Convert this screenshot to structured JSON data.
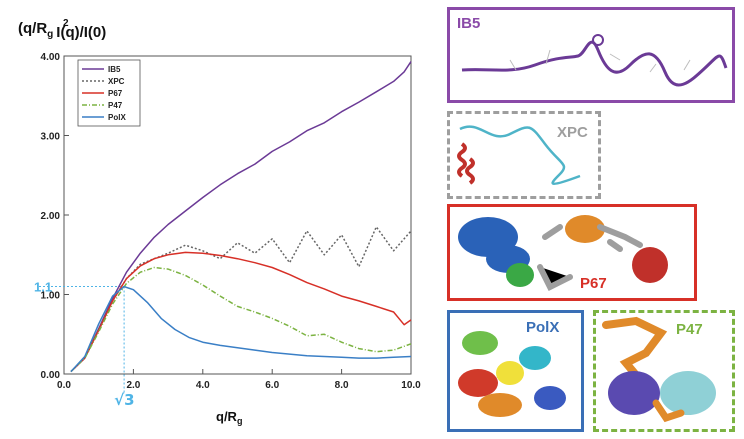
{
  "chart_data": {
    "type": "line",
    "ylabel_base": "(q/R",
    "ylabel_sub": "g",
    "ylabel_sup": "2",
    "ylabel_tail": "I(q)/I(0)",
    "xlabel_base": "q/R",
    "xlabel_sub": "g",
    "xlim": [
      0,
      10
    ],
    "ylim": [
      0,
      4
    ],
    "xticks": [
      "0.0",
      "2.0",
      "4.0",
      "6.0",
      "8.0",
      "10.0"
    ],
    "yticks": [
      "0.00",
      "1.00",
      "2.00",
      "3.00",
      "4.00"
    ],
    "grid": false,
    "legend_position": "top-left",
    "annotations": {
      "peak_y_label": "1.1",
      "peak_x_label": "√3",
      "peak_x": 1.732,
      "peak_y": 1.1
    },
    "colors": {
      "annotation": "#4fb4e6"
    },
    "series": [
      {
        "name": "IB5",
        "color": "#6b3a96",
        "dash": "solid",
        "x": [
          0.2,
          0.6,
          1.0,
          1.4,
          1.8,
          2.2,
          2.6,
          3.0,
          3.5,
          4.0,
          4.5,
          5.0,
          5.5,
          6.0,
          6.5,
          7.0,
          7.5,
          8.0,
          8.5,
          9.0,
          9.5,
          9.8,
          10.0
        ],
        "y": [
          0.03,
          0.2,
          0.57,
          0.95,
          1.28,
          1.52,
          1.72,
          1.88,
          2.05,
          2.22,
          2.38,
          2.52,
          2.64,
          2.8,
          2.92,
          3.06,
          3.16,
          3.3,
          3.42,
          3.55,
          3.68,
          3.8,
          3.93
        ]
      },
      {
        "name": "XPC",
        "color": "#666666",
        "dash": "dotted",
        "x": [
          0.2,
          0.6,
          1.0,
          1.4,
          1.8,
          2.2,
          2.6,
          3.0,
          3.5,
          4.0,
          4.5,
          5.0,
          5.5,
          6.0,
          6.5,
          7.0,
          7.5,
          8.0,
          8.5,
          9.0,
          9.5,
          10.0
        ],
        "y": [
          0.03,
          0.2,
          0.56,
          0.92,
          1.2,
          1.38,
          1.45,
          1.52,
          1.62,
          1.55,
          1.45,
          1.65,
          1.52,
          1.7,
          1.4,
          1.8,
          1.5,
          1.75,
          1.35,
          1.85,
          1.55,
          1.8
        ]
      },
      {
        "name": "P67",
        "color": "#d73027",
        "dash": "solid",
        "x": [
          0.2,
          0.6,
          1.0,
          1.4,
          1.8,
          2.2,
          2.6,
          3.0,
          3.5,
          4.0,
          4.5,
          5.0,
          5.5,
          6.0,
          6.5,
          7.0,
          7.5,
          8.0,
          8.5,
          9.0,
          9.5,
          9.8,
          10.0
        ],
        "y": [
          0.03,
          0.2,
          0.55,
          0.92,
          1.2,
          1.36,
          1.45,
          1.5,
          1.53,
          1.52,
          1.49,
          1.45,
          1.4,
          1.34,
          1.25,
          1.15,
          1.07,
          0.98,
          0.92,
          0.85,
          0.78,
          0.62,
          0.68
        ]
      },
      {
        "name": "P47",
        "color": "#7cb342",
        "dash": "dashdot",
        "x": [
          0.2,
          0.6,
          1.0,
          1.4,
          1.8,
          2.2,
          2.6,
          3.0,
          3.5,
          4.0,
          4.5,
          5.0,
          5.5,
          6.0,
          6.5,
          7.0,
          7.5,
          8.0,
          8.5,
          9.0,
          9.5,
          10.0
        ],
        "y": [
          0.03,
          0.2,
          0.53,
          0.88,
          1.14,
          1.28,
          1.34,
          1.32,
          1.24,
          1.12,
          0.98,
          0.85,
          0.78,
          0.7,
          0.6,
          0.48,
          0.5,
          0.4,
          0.32,
          0.28,
          0.3,
          0.38
        ]
      },
      {
        "name": "PolX",
        "color": "#3a7fc6",
        "dash": "solid",
        "x": [
          0.2,
          0.6,
          1.0,
          1.4,
          1.732,
          2.0,
          2.4,
          2.8,
          3.2,
          3.6,
          4.0,
          4.5,
          5.0,
          5.5,
          6.0,
          6.5,
          7.0,
          7.5,
          8.0,
          8.5,
          9.0,
          9.5,
          10.0
        ],
        "y": [
          0.03,
          0.22,
          0.63,
          0.98,
          1.1,
          1.06,
          0.9,
          0.7,
          0.56,
          0.46,
          0.4,
          0.36,
          0.33,
          0.3,
          0.27,
          0.25,
          0.23,
          0.22,
          0.21,
          0.2,
          0.2,
          0.21,
          0.22
        ]
      }
    ]
  },
  "panels": [
    {
      "label": "IB5",
      "border_color": "#8a4aa8",
      "border_style": "solid"
    },
    {
      "label": "XPC",
      "border_color": "#9e9e9e",
      "border_style": "dashed"
    },
    {
      "label": "P67",
      "border_color": "#d73027",
      "border_style": "solid"
    },
    {
      "label": "PolX",
      "border_color": "#3a6fb6",
      "border_style": "solid"
    },
    {
      "label": "P47",
      "border_color": "#7cb342",
      "border_style": "dashed"
    }
  ]
}
